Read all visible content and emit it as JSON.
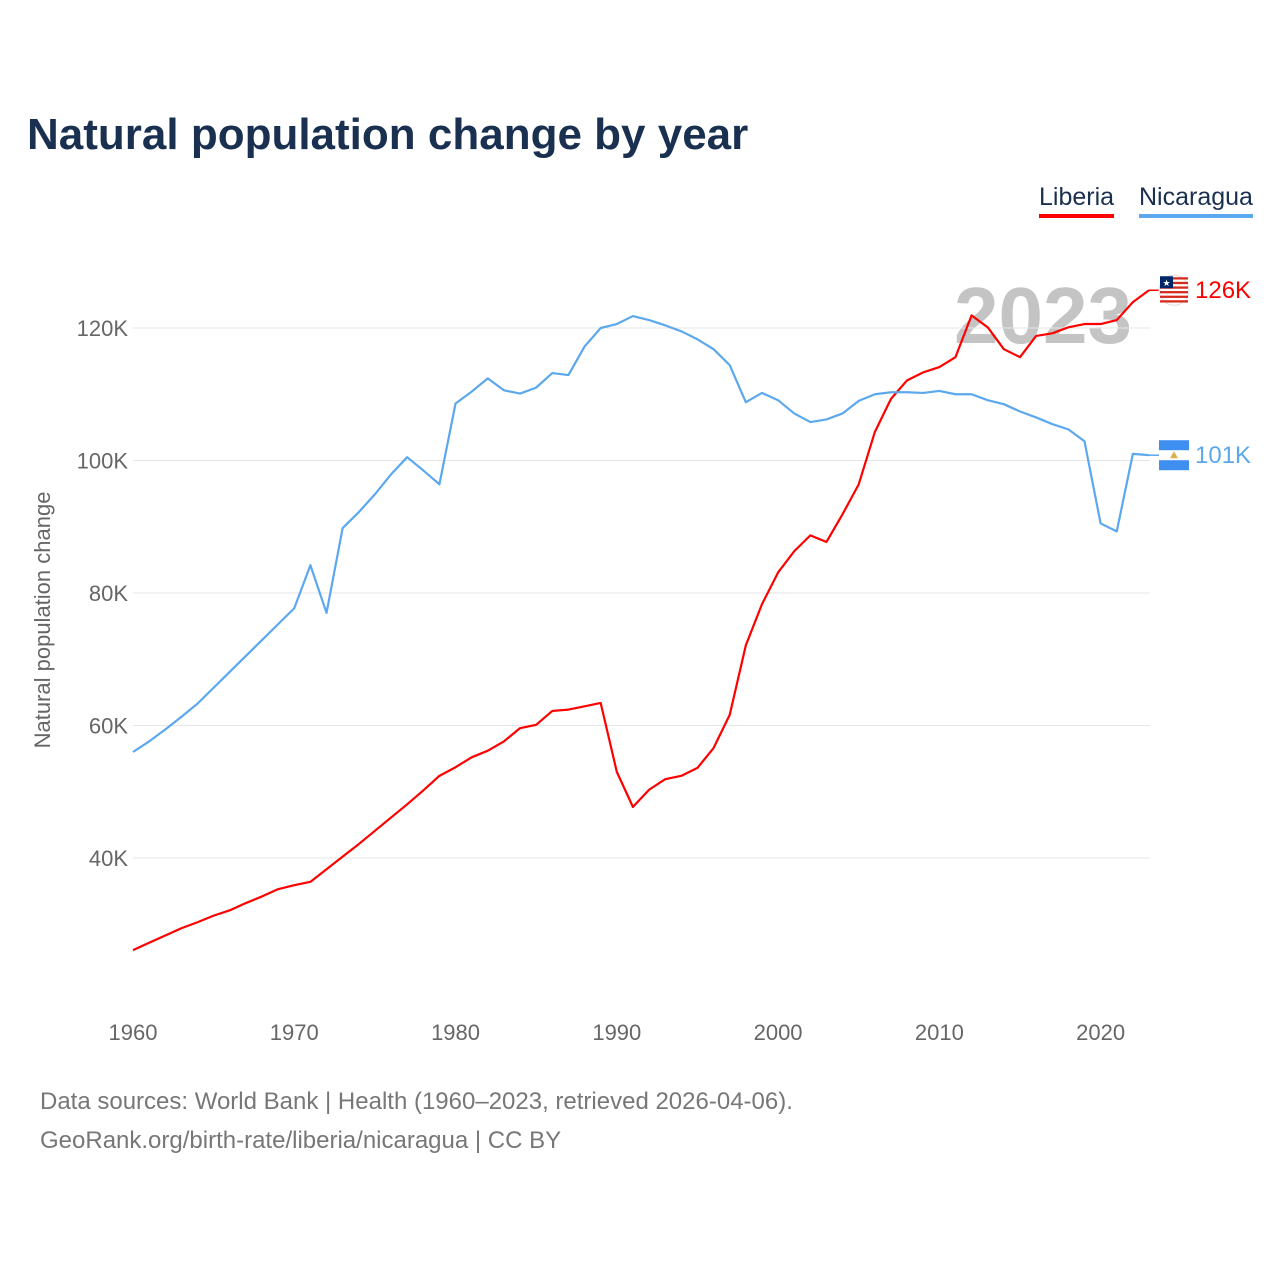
{
  "chart_data": {
    "type": "line",
    "title": "Natural population change by year",
    "xlabel": "",
    "ylabel": "Natural population change",
    "xlim": [
      1960,
      2023
    ],
    "ylim": [
      20000,
      128000
    ],
    "x_ticks": [
      1960,
      1970,
      1980,
      1990,
      2000,
      2010,
      2020
    ],
    "y_ticks": [
      40000,
      60000,
      80000,
      100000,
      120000
    ],
    "y_tick_labels": [
      "40K",
      "60K",
      "80K",
      "100K",
      "120K"
    ],
    "grid": true,
    "legend_position": "top-right",
    "year_watermark": "2023",
    "x": [
      1960,
      1961,
      1962,
      1963,
      1964,
      1965,
      1966,
      1967,
      1968,
      1969,
      1970,
      1971,
      1972,
      1973,
      1974,
      1975,
      1976,
      1977,
      1978,
      1979,
      1980,
      1981,
      1982,
      1983,
      1984,
      1985,
      1986,
      1987,
      1988,
      1989,
      1990,
      1991,
      1992,
      1993,
      1994,
      1995,
      1996,
      1997,
      1998,
      1999,
      2000,
      2001,
      2002,
      2003,
      2004,
      2005,
      2006,
      2007,
      2008,
      2009,
      2010,
      2011,
      2012,
      2013,
      2014,
      2015,
      2016,
      2017,
      2018,
      2019,
      2020,
      2021,
      2022,
      2023
    ],
    "series": [
      {
        "name": "Liberia",
        "color": "#ff0000",
        "end_label": "126K",
        "values": [
          26100,
          27200,
          28300,
          29400,
          30300,
          31300,
          32100,
          33200,
          34200,
          35300,
          35900,
          36400,
          38300,
          40200,
          42100,
          44100,
          46100,
          48100,
          50200,
          52400,
          53700,
          55200,
          56200,
          57600,
          59600,
          60100,
          62200,
          62400,
          62900,
          63400,
          53000,
          47700,
          50300,
          51900,
          52400,
          53600,
          56600,
          61600,
          72100,
          78300,
          83100,
          86300,
          88700,
          87700,
          91900,
          96400,
          104300,
          109300,
          112100,
          113300,
          114100,
          115600,
          121900,
          120100,
          116800,
          115600,
          118800,
          119200,
          120100,
          120600,
          120600,
          121200,
          123900,
          125700
        ]
      },
      {
        "name": "Nicaragua",
        "color": "#5ca8ee",
        "end_label": "101K",
        "values": [
          56000,
          57600,
          59400,
          61300,
          63300,
          65700,
          68100,
          70500,
          72900,
          75300,
          77700,
          84200,
          77000,
          89800,
          92200,
          94900,
          97900,
          100500,
          98500,
          96400,
          108600,
          110400,
          112400,
          110600,
          110100,
          111000,
          113200,
          112900,
          117200,
          120000,
          120600,
          121800,
          121200,
          120400,
          119500,
          118300,
          116800,
          114400,
          108800,
          110200,
          109100,
          107100,
          105800,
          106200,
          107100,
          109000,
          110000,
          110300,
          110300,
          110200,
          110500,
          110000,
          110000,
          109100,
          108500,
          107400,
          106500,
          105500,
          104700,
          102900,
          90500,
          89300,
          101000,
          100800
        ]
      }
    ]
  },
  "footer": {
    "line1": "Data sources: World Bank | Health (1960–2023, retrieved 2026-04-06).",
    "line2": "GeoRank.org/birth-rate/liberia/nicaragua | CC BY"
  }
}
